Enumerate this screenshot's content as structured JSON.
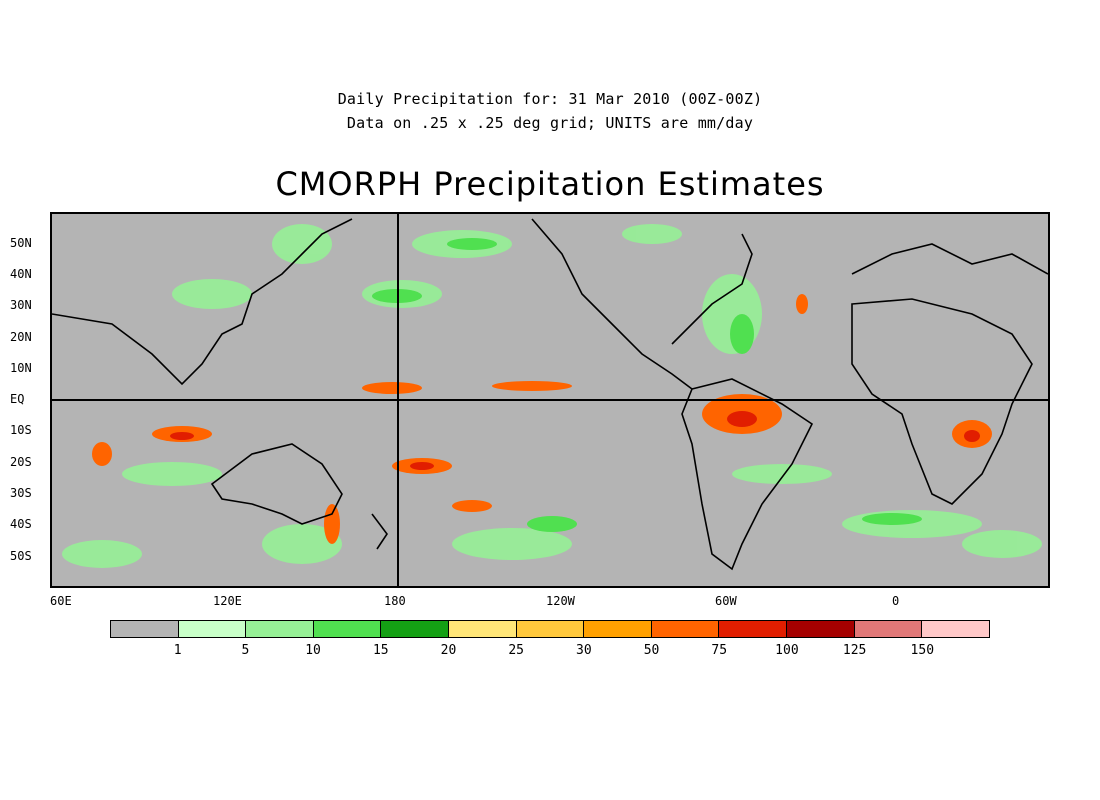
{
  "subtitle_line1": "Daily Precipitation for: 31 Mar 2010 (00Z-00Z)",
  "subtitle_line2": "Data on .25 x .25 deg grid; UNITS are mm/day",
  "title": "CMORPH Precipitation Estimates",
  "lat_labels": [
    "50N",
    "40N",
    "30N",
    "20N",
    "10N",
    "EQ",
    "10S",
    "20S",
    "30S",
    "40S",
    "50S"
  ],
  "lon_labels": [
    "60E",
    "120E",
    "180",
    "120W",
    "60W",
    "0"
  ],
  "legend": {
    "colors": [
      "#b4b4b4",
      "#c8ffc8",
      "#96f096",
      "#50e050",
      "#14a014",
      "#ffe678",
      "#ffc83c",
      "#ffa000",
      "#ff6400",
      "#e11e00",
      "#a50000",
      "#e17878",
      "#ffc8c8"
    ],
    "ticks": [
      "1",
      "5",
      "10",
      "15",
      "20",
      "25",
      "30",
      "50",
      "75",
      "100",
      "125",
      "150"
    ]
  }
}
